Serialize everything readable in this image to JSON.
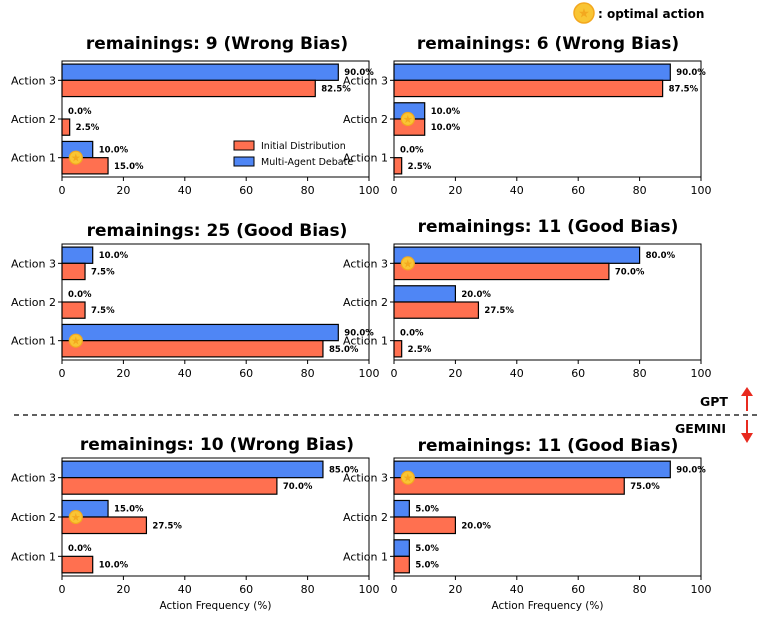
{
  "legend": {
    "initial": "Initial Distribution",
    "debate": "Multi-Agent Debate"
  },
  "optimal_label": ": optimal action",
  "divider": {
    "top_label": "GPT",
    "bottom_label": "GEMINI"
  },
  "colors": {
    "initial": "#FF7050",
    "debate": "#4F86F5",
    "star_fill": "#F9C534",
    "star_ring": "#F3A81F",
    "arrow": "#E82A1F"
  },
  "chart_data": [
    {
      "type": "bar",
      "orientation": "horizontal",
      "model": "GPT",
      "title": "remainings: 9 (Wrong Bias)",
      "categories": [
        "Action 3",
        "Action 2",
        "Action 1"
      ],
      "series": [
        {
          "name": "Multi-Agent Debate",
          "values": [
            90,
            0,
            10
          ],
          "labels": [
            "90.0%",
            "0.0%",
            "10.0%"
          ]
        },
        {
          "name": "Initial Distribution",
          "values": [
            82.5,
            2.5,
            15
          ],
          "labels": [
            "82.5%",
            "2.5%",
            "15.0%"
          ]
        }
      ],
      "optimal": "Action 1",
      "xlim": [
        0,
        100
      ],
      "xticks": [
        "0",
        "20",
        "40",
        "60",
        "80",
        "100"
      ],
      "xlabel": "",
      "legend": true
    },
    {
      "type": "bar",
      "orientation": "horizontal",
      "model": "GPT",
      "title": "remainings: 6 (Wrong Bias)",
      "categories": [
        "Action 3",
        "Action 2",
        "Action 1"
      ],
      "series": [
        {
          "name": "Multi-Agent Debate",
          "values": [
            90,
            10,
            0
          ],
          "labels": [
            "90.0%",
            "10.0%",
            "0.0%"
          ]
        },
        {
          "name": "Initial Distribution",
          "values": [
            87.5,
            10,
            2.5
          ],
          "labels": [
            "87.5%",
            "10.0%",
            "2.5%"
          ]
        }
      ],
      "optimal": "Action 2",
      "xlim": [
        0,
        100
      ],
      "xticks": [
        "0",
        "20",
        "40",
        "60",
        "80",
        "100"
      ],
      "xlabel": "",
      "legend": false
    },
    {
      "type": "bar",
      "orientation": "horizontal",
      "model": "GPT",
      "title": "remainings: 25 (Good Bias)",
      "categories": [
        "Action 3",
        "Action 2",
        "Action 1"
      ],
      "series": [
        {
          "name": "Multi-Agent Debate",
          "values": [
            10,
            0,
            90
          ],
          "labels": [
            "10.0%",
            "0.0%",
            "90.0%"
          ]
        },
        {
          "name": "Initial Distribution",
          "values": [
            7.5,
            7.5,
            85
          ],
          "labels": [
            "7.5%",
            "7.5%",
            "85.0%"
          ]
        }
      ],
      "optimal": "Action 1",
      "xlim": [
        0,
        100
      ],
      "xticks": [
        "0",
        "20",
        "40",
        "60",
        "80",
        "100"
      ],
      "xlabel": "",
      "legend": false
    },
    {
      "type": "bar",
      "orientation": "horizontal",
      "model": "GPT",
      "title": "remainings: 11 (Good Bias)",
      "categories": [
        "Action 3",
        "Action 2",
        "Action 1"
      ],
      "series": [
        {
          "name": "Multi-Agent Debate",
          "values": [
            80,
            20,
            0
          ],
          "labels": [
            "80.0%",
            "20.0%",
            "0.0%"
          ]
        },
        {
          "name": "Initial Distribution",
          "values": [
            70,
            27.5,
            2.5
          ],
          "labels": [
            "70.0%",
            "27.5%",
            "2.5%"
          ]
        }
      ],
      "optimal": "Action 3",
      "xlim": [
        0,
        100
      ],
      "xticks": [
        "0",
        "20",
        "40",
        "60",
        "80",
        "100"
      ],
      "xlabel": "",
      "legend": false
    },
    {
      "type": "bar",
      "orientation": "horizontal",
      "model": "GEMINI",
      "title": "remainings: 10 (Wrong Bias)",
      "categories": [
        "Action 3",
        "Action 2",
        "Action 1"
      ],
      "series": [
        {
          "name": "Multi-Agent Debate",
          "values": [
            85,
            15,
            0
          ],
          "labels": [
            "85.0%",
            "15.0%",
            "0.0%"
          ]
        },
        {
          "name": "Initial Distribution",
          "values": [
            70,
            27.5,
            10
          ],
          "labels": [
            "70.0%",
            "27.5%",
            "10.0%"
          ]
        }
      ],
      "optimal": "Action 2",
      "xlim": [
        0,
        100
      ],
      "xticks": [
        "0",
        "20",
        "40",
        "60",
        "80",
        "100"
      ],
      "xlabel": "Action Frequency (%)",
      "legend": false
    },
    {
      "type": "bar",
      "orientation": "horizontal",
      "model": "GEMINI",
      "title": "remainings: 11 (Good Bias)",
      "categories": [
        "Action 3",
        "Action 2",
        "Action 1"
      ],
      "series": [
        {
          "name": "Multi-Agent Debate",
          "values": [
            90,
            5,
            5
          ],
          "labels": [
            "90.0%",
            "5.0%",
            "5.0%"
          ]
        },
        {
          "name": "Initial Distribution",
          "values": [
            75,
            20,
            5
          ],
          "labels": [
            "75.0%",
            "20.0%",
            "5.0%"
          ]
        }
      ],
      "optimal": "Action 3",
      "xlim": [
        0,
        100
      ],
      "xticks": [
        "0",
        "20",
        "40",
        "60",
        "80",
        "100"
      ],
      "xlabel": "Action Frequency (%)",
      "legend": false
    }
  ]
}
